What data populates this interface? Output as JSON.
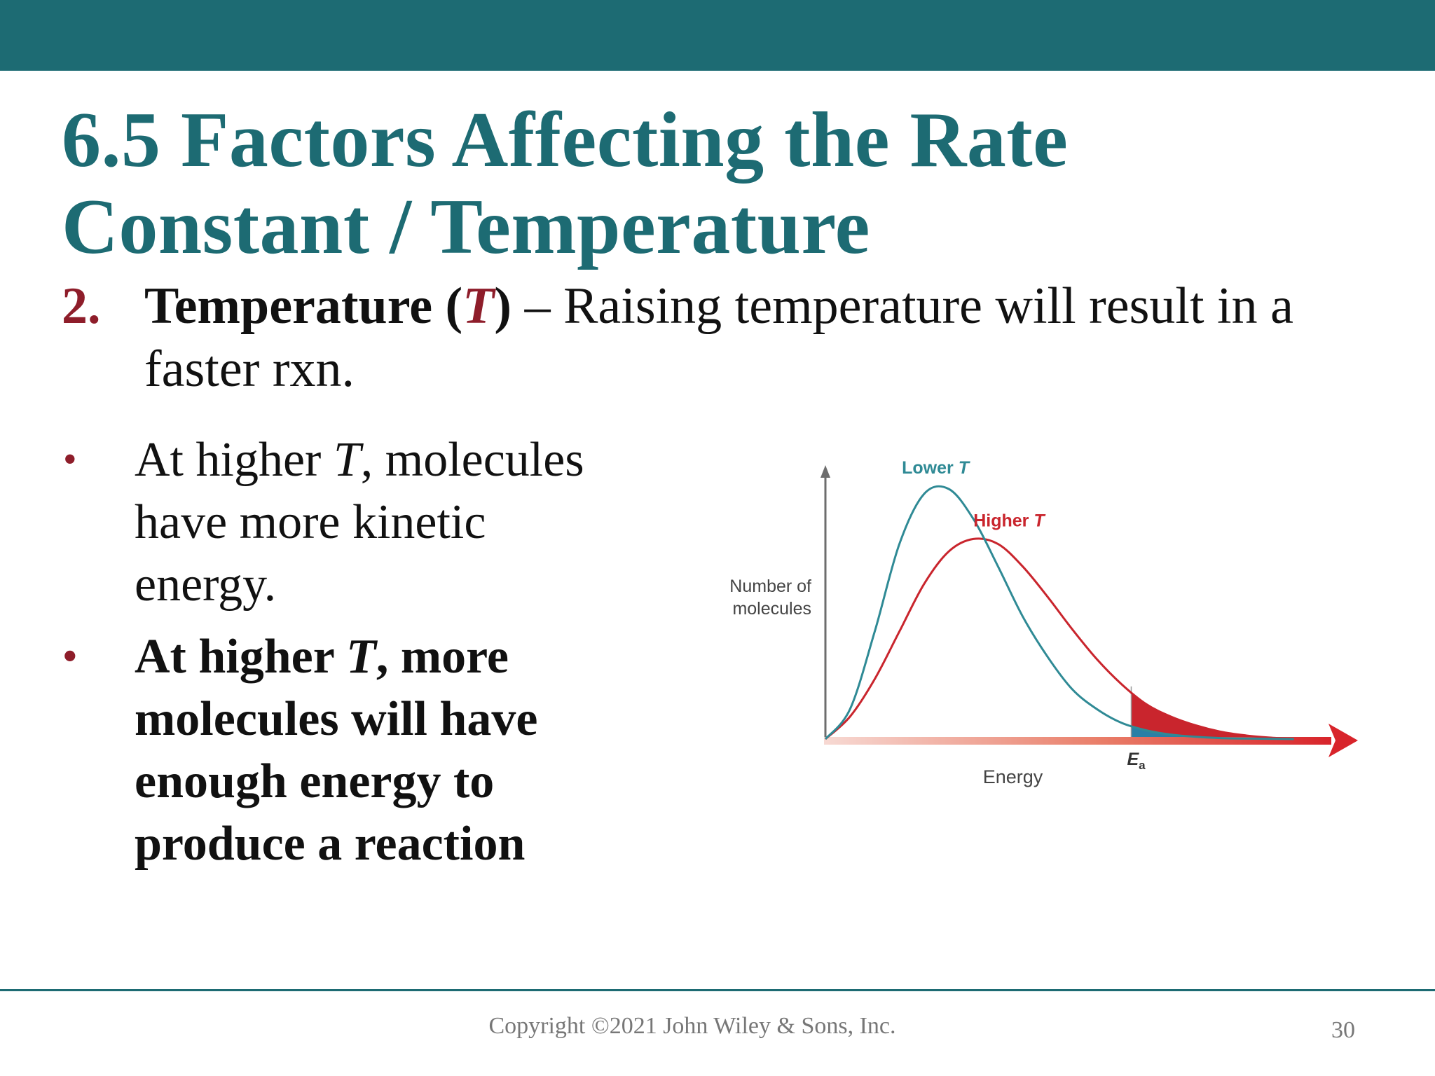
{
  "slide": {
    "title_line1": "6.5 Factors Affecting the Rate",
    "title_line2": "Constant / Temperature",
    "item_number": "2.",
    "item_term_pre": "Temperature (",
    "item_term_var": "T",
    "item_term_post": ")",
    "item_text_line1": " – Raising temperature will result in a",
    "item_text_line2": "faster rxn.",
    "bullet1": {
      "marker": "•",
      "line1_pre": "At higher ",
      "line1_var": "T",
      "line1_post": ", molecules",
      "line2": "have more kinetic",
      "line3": "energy."
    },
    "bullet2": {
      "marker": "•",
      "line1_pre": "At higher ",
      "line1_var": "T",
      "line1_post": ", more",
      "line2": "molecules will have",
      "line3": "enough energy to",
      "line4": "produce a reaction"
    }
  },
  "chart_data": {
    "type": "line",
    "title": "",
    "xlabel": "Energy",
    "ylabel": "Number of molecules",
    "ylabel_line1": "Number of",
    "ylabel_line2": "molecules",
    "threshold_label_base": "E",
    "threshold_label_sub": "a",
    "threshold_x": 0.62,
    "xlim": [
      0,
      1
    ],
    "ylim": [
      0,
      1
    ],
    "series": [
      {
        "name": "Lower T",
        "label_base": "Lower ",
        "label_var": "T",
        "color": "#2f8a95",
        "x": [
          0,
          0.05,
          0.1,
          0.15,
          0.2,
          0.25,
          0.3,
          0.35,
          0.4,
          0.45,
          0.5,
          0.55,
          0.6,
          0.65,
          0.7,
          0.75,
          0.8,
          0.85,
          0.9,
          0.95
        ],
        "y": [
          0,
          0.12,
          0.43,
          0.78,
          0.98,
          1.0,
          0.88,
          0.69,
          0.49,
          0.33,
          0.2,
          0.12,
          0.065,
          0.035,
          0.018,
          0.009,
          0.004,
          0.002,
          0.001,
          0
        ]
      },
      {
        "name": "Higher T",
        "label_base": "Higher ",
        "label_var": "T",
        "color": "#c9252d",
        "x": [
          0,
          0.05,
          0.1,
          0.15,
          0.2,
          0.25,
          0.3,
          0.35,
          0.4,
          0.45,
          0.5,
          0.55,
          0.6,
          0.65,
          0.7,
          0.75,
          0.8,
          0.85,
          0.9,
          0.95
        ],
        "y": [
          0,
          0.09,
          0.24,
          0.43,
          0.62,
          0.75,
          0.8,
          0.78,
          0.69,
          0.57,
          0.44,
          0.32,
          0.22,
          0.14,
          0.09,
          0.055,
          0.03,
          0.015,
          0.006,
          0
        ]
      }
    ],
    "annotations": [
      "Lower T",
      "Higher T",
      "Ea"
    ]
  },
  "footer": {
    "copyright": "Copyright ©2021 John Wiley & Sons, Inc.",
    "page_number": "30"
  },
  "colors": {
    "accent": "#1d6b73",
    "number_red": "#8e1d2a",
    "lower_t": "#2f8a95",
    "higher_t": "#c9252d"
  }
}
